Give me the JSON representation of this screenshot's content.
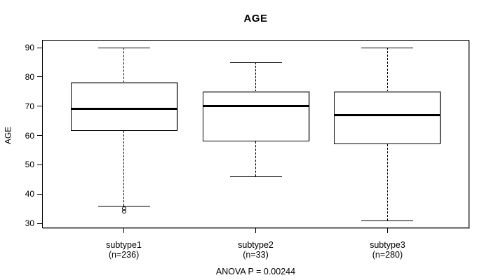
{
  "chart_data": {
    "type": "boxplot",
    "title": "AGE",
    "ylabel": "AGE",
    "footer": "ANOVA P = 0.00244",
    "ylim": [
      28,
      93
    ],
    "yticks": [
      30,
      40,
      50,
      60,
      70,
      80,
      90
    ],
    "grid": false,
    "legend": "none",
    "groups": [
      {
        "label": "subtype1",
        "sublabel": "(n=236)",
        "n": 236,
        "whisker_low": 36,
        "q1": 61.5,
        "median": 69,
        "q3": 78,
        "whisker_high": 90,
        "outliers": [
          35,
          34
        ]
      },
      {
        "label": "subtype2",
        "sublabel": "(n=33)",
        "n": 33,
        "whisker_low": 46,
        "q1": 58,
        "median": 70,
        "q3": 75,
        "whisker_high": 85,
        "outliers": []
      },
      {
        "label": "subtype3",
        "sublabel": "(n=280)",
        "n": 280,
        "whisker_low": 31,
        "q1": 57,
        "median": 67,
        "q3": 75,
        "whisker_high": 90,
        "outliers": []
      }
    ],
    "colors": {
      "line": "#000000",
      "fill": "#ffffff",
      "background": "#ffffff",
      "shadow": "#aaaaaa"
    }
  }
}
